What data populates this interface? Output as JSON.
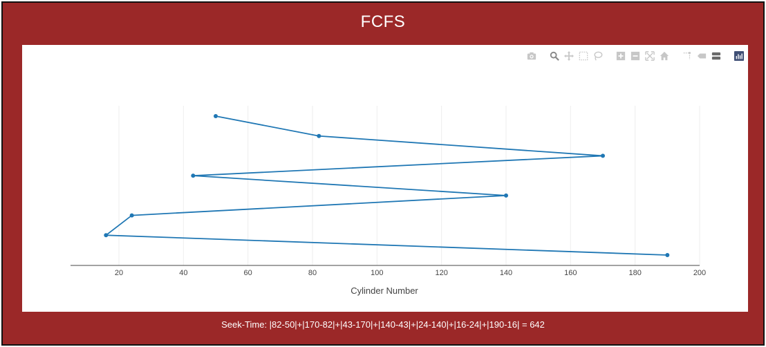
{
  "title": "FCFS",
  "footer": "Seek-Time: |82-50|+|170-82|+|43-170|+|140-43|+|24-140|+|16-24|+|190-16| = 642",
  "colors": {
    "frame": "#9b2828",
    "line": "#1f77b4",
    "grid": "#eeeeee",
    "modebar_icon": "#c7c7c7"
  },
  "modebar": [
    "camera-icon",
    "zoom-icon",
    "pan-icon",
    "box-select-icon",
    "lasso-icon",
    "zoom-in-icon",
    "zoom-out-icon",
    "autoscale-icon",
    "reset-axes-icon",
    "spike-lines-icon",
    "hover-closest-icon",
    "hover-compare-icon",
    "plotly-logo-icon"
  ],
  "chart_data": {
    "type": "line",
    "xlabel": "Cylinder Number",
    "ylabel": "",
    "xlim": [
      5,
      200
    ],
    "xticks": [
      20,
      40,
      60,
      80,
      100,
      120,
      140,
      160,
      180,
      200
    ],
    "grid": true,
    "series": [
      {
        "x": [
          50,
          82,
          170,
          43,
          140,
          24,
          16,
          190
        ],
        "y": [
          1,
          2,
          3,
          4,
          5,
          6,
          7,
          8
        ]
      }
    ]
  }
}
